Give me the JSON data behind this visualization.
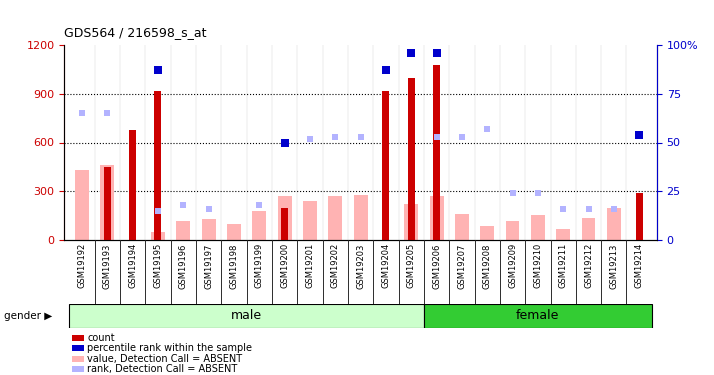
{
  "title": "GDS564 / 216598_s_at",
  "samples": [
    "GSM19192",
    "GSM19193",
    "GSM19194",
    "GSM19195",
    "GSM19196",
    "GSM19197",
    "GSM19198",
    "GSM19199",
    "GSM19200",
    "GSM19201",
    "GSM19202",
    "GSM19203",
    "GSM19204",
    "GSM19205",
    "GSM19206",
    "GSM19207",
    "GSM19208",
    "GSM19209",
    "GSM19210",
    "GSM19211",
    "GSM19212",
    "GSM19213",
    "GSM19214"
  ],
  "gender": [
    "male",
    "male",
    "male",
    "male",
    "male",
    "male",
    "male",
    "male",
    "male",
    "male",
    "male",
    "male",
    "male",
    "male",
    "female",
    "female",
    "female",
    "female",
    "female",
    "female",
    "female",
    "female",
    "female"
  ],
  "count_values": [
    0,
    450,
    680,
    920,
    0,
    0,
    0,
    0,
    200,
    0,
    0,
    0,
    920,
    1000,
    1080,
    0,
    0,
    0,
    0,
    0,
    0,
    0,
    290
  ],
  "percentile_rank": [
    null,
    null,
    null,
    87,
    null,
    null,
    null,
    null,
    50,
    null,
    null,
    null,
    87,
    96,
    96,
    null,
    null,
    null,
    null,
    null,
    null,
    null,
    54
  ],
  "absent_value": [
    430,
    460,
    0,
    50,
    120,
    130,
    100,
    180,
    270,
    240,
    270,
    280,
    0,
    220,
    270,
    160,
    85,
    115,
    155,
    70,
    135,
    200,
    0
  ],
  "absent_rank": [
    65,
    65,
    null,
    15,
    18,
    16,
    null,
    18,
    null,
    52,
    53,
    53,
    null,
    null,
    53,
    53,
    57,
    24,
    24,
    16,
    16,
    16,
    null
  ],
  "ylim_left": [
    0,
    1200
  ],
  "ylim_right": [
    0,
    100
  ],
  "yticks_left": [
    0,
    300,
    600,
    900,
    1200
  ],
  "yticks_right": [
    0,
    25,
    50,
    75,
    100
  ],
  "bar_color_count": "#cc0000",
  "bar_color_absent_value": "#ffb3b3",
  "dot_color_rank": "#0000cc",
  "dot_color_absent_rank": "#b3b3ff",
  "male_color_light": "#ccffcc",
  "female_color_dark": "#33cc33",
  "bg_color": "#ffffff",
  "tick_label_color_left": "#cc0000",
  "tick_label_color_right": "#0000cc",
  "male_count": 14,
  "female_count": 9
}
